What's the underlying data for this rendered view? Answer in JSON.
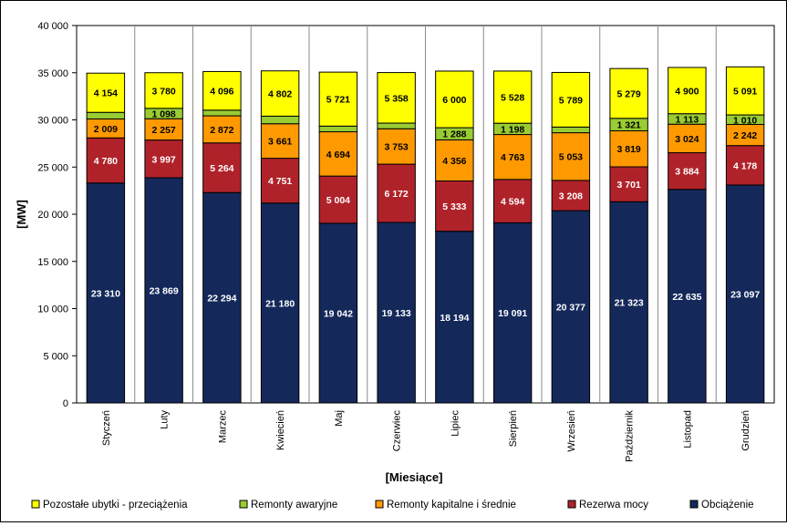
{
  "chart_data": {
    "type": "bar",
    "stacked": true,
    "title": "",
    "xlabel": "[Miesiące]",
    "ylabel": "[MW]",
    "ylim": [
      0,
      40000
    ],
    "yticks": [
      0,
      5000,
      10000,
      15000,
      20000,
      25000,
      30000,
      35000,
      40000
    ],
    "ytick_labels": [
      "0",
      "5 000",
      "10 000",
      "15 000",
      "20 000",
      "25 000",
      "30 000",
      "35 000",
      "40 000"
    ],
    "grid": "vertical-separators",
    "legend_position": "bottom",
    "categories": [
      "Styczeń",
      "Luty",
      "Marzec",
      "Kwiecień",
      "Maj",
      "Czerwiec",
      "Lipiec",
      "Sierpień",
      "Wrzesień",
      "Październik",
      "Listopad",
      "Grudzień"
    ],
    "series": [
      {
        "name": "Obciążenie",
        "color": "#14285a",
        "label_color": "#ffffff",
        "values": [
          23310,
          23869,
          22294,
          21180,
          19042,
          19133,
          18194,
          19091,
          20377,
          21323,
          22635,
          23097
        ],
        "labels": [
          "23 310",
          "23 869",
          "22 294",
          "21 180",
          "19 042",
          "19 133",
          "18 194",
          "19 091",
          "20 377",
          "21 323",
          "22 635",
          "23 097"
        ]
      },
      {
        "name": "Rezerwa mocy",
        "color": "#b0222a",
        "label_color": "#ffffff",
        "values": [
          4780,
          3997,
          5264,
          4751,
          5004,
          6172,
          5333,
          4594,
          3208,
          3701,
          3884,
          4178
        ],
        "labels": [
          "4 780",
          "3 997",
          "5 264",
          "4 751",
          "5 004",
          "6 172",
          "5 333",
          "4 594",
          "3 208",
          "3 701",
          "3 884",
          "4 178"
        ]
      },
      {
        "name": "Remonty kapitalne i średnie",
        "color": "#ff9900",
        "label_color": "#000000",
        "values": [
          2009,
          2257,
          2872,
          3661,
          4694,
          3753,
          4356,
          4763,
          5053,
          3819,
          3024,
          2242
        ],
        "labels": [
          "2 009",
          "2 257",
          "2 872",
          "3 661",
          "4 694",
          "3 753",
          "4 356",
          "4 763",
          "5 053",
          "3 819",
          "3 024",
          "2 242"
        ]
      },
      {
        "name": "Remonty awaryjne",
        "color": "#99cc33",
        "label_color": "#000000",
        "values": [
          700,
          1098,
          600,
          800,
          600,
          600,
          1288,
          1198,
          600,
          1321,
          1113,
          1010
        ],
        "labels": [
          "",
          "1 098",
          "",
          "",
          "",
          "",
          "1 288",
          "1 198",
          "",
          "1 321",
          "1 113",
          "1 010"
        ]
      },
      {
        "name": "Pozostałe ubytki - przeciążenia",
        "color": "#ffff00",
        "label_color": "#000000",
        "values": [
          4154,
          3780,
          4096,
          4802,
          5721,
          5358,
          6000,
          5528,
          5789,
          5279,
          4900,
          5091
        ],
        "labels": [
          "4 154",
          "3 780",
          "4 096",
          "4 802",
          "5 721",
          "5 358",
          "6 000",
          "5 528",
          "5 789",
          "5 279",
          "4 900",
          "5 091"
        ]
      }
    ],
    "legend_order": [
      4,
      3,
      2,
      1,
      0
    ]
  }
}
